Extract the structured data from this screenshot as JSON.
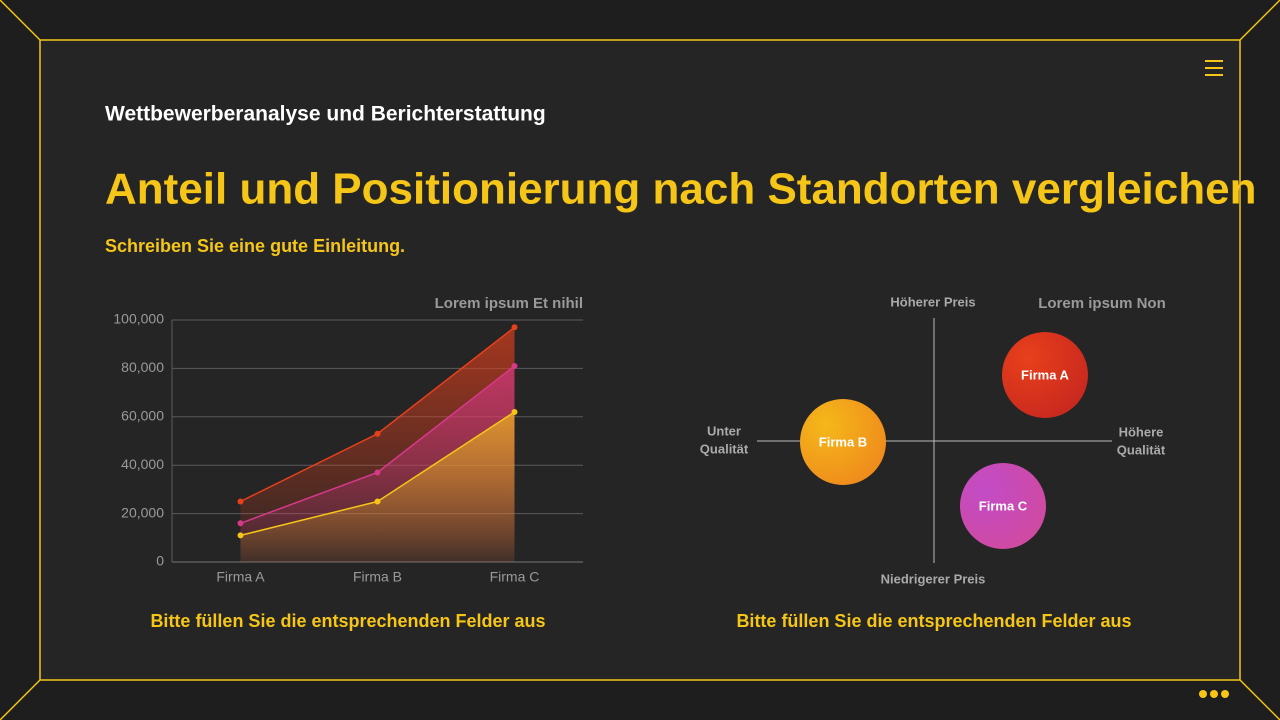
{
  "slide": {
    "kicker": "Wettbewerberanalyse und Berichterstattung",
    "title": "Anteil und Positionierung nach Standorten vergleichen",
    "intro": "Schreiben Sie eine gute Einleitung.",
    "captions": [
      "Bitte füllen Sie die entsprechenden Felder aus",
      "Bitte füllen Sie die entsprechenden Felder aus"
    ]
  },
  "chart_data": {
    "type": "area",
    "title": "Lorem ipsum Et nihil",
    "categories": [
      "Firma A",
      "Firma B",
      "Firma C"
    ],
    "series": [
      {
        "color": "#e8401c",
        "values": [
          25000,
          53000,
          97000
        ]
      },
      {
        "color": "#d6388a",
        "values": [
          16000,
          37000,
          81000
        ]
      },
      {
        "color": "#f5c518",
        "values": [
          11000,
          25000,
          62000
        ]
      }
    ],
    "ylim": [
      0,
      100000
    ],
    "yticks": [
      0,
      {
        "value": 20000,
        "label": "20,000"
      },
      {
        "value": 40000,
        "label": "40,000"
      },
      {
        "value": 60000,
        "label": "60,000"
      },
      {
        "value": 80000,
        "label": "80,000"
      },
      {
        "value": 100000,
        "label": "100,000"
      }
    ],
    "grid": true
  },
  "positioning": {
    "title": "Lorem ipsum Non",
    "top": "Höherer Preis",
    "bottom": "Niedrigerer Preis",
    "left": [
      "Unter",
      "Qualität"
    ],
    "right": [
      "Höhere",
      "Qualität"
    ],
    "items": [
      "Firma A",
      "Firma B",
      "Firma C"
    ]
  }
}
